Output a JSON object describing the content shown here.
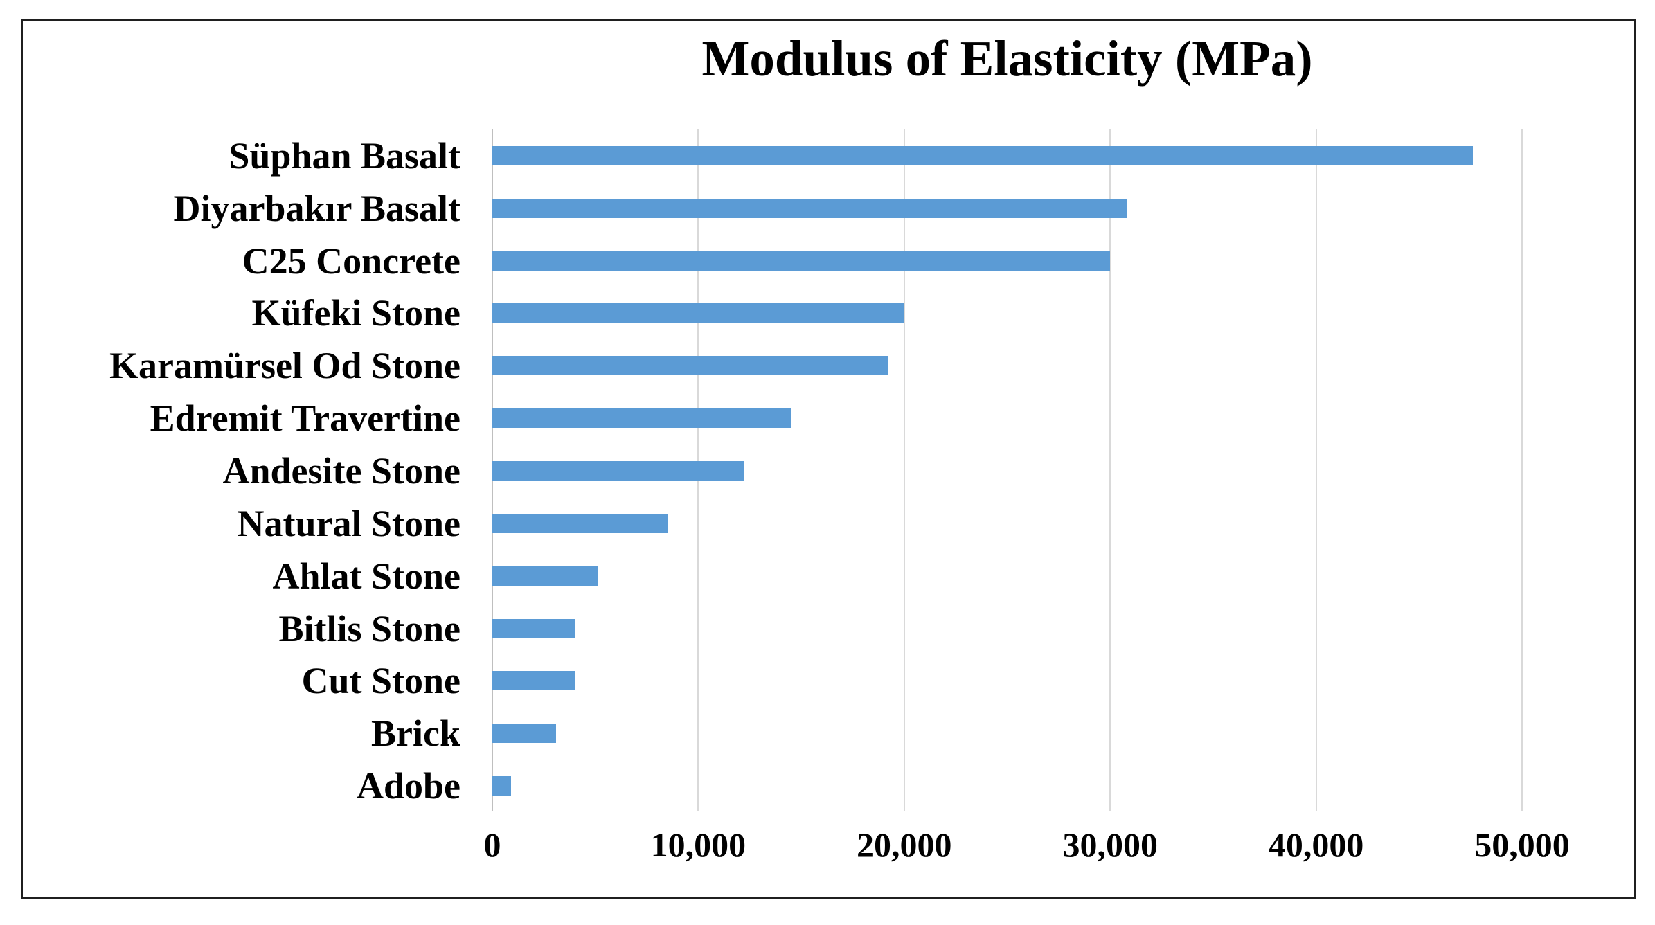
{
  "figure": {
    "border_color": "#1f1f1f",
    "background_color": "#ffffff"
  },
  "chart_data": {
    "type": "bar",
    "orientation": "horizontal",
    "title": "Modulus of Elasticity (MPa)",
    "categories": [
      "Süphan Basalt",
      "Diyarbakır Basalt",
      "C25 Concrete",
      "Küfeki Stone",
      "Karamürsel Od Stone",
      "Edremit Travertine",
      "Andesite Stone",
      "Natural Stone",
      "Ahlat Stone",
      "Bitlis Stone",
      "Cut Stone",
      "Brick",
      "Adobe"
    ],
    "values": [
      47600,
      30800,
      30000,
      20000,
      19200,
      14500,
      12200,
      8500,
      5100,
      4000,
      4000,
      3100,
      900
    ],
    "xlabel": "",
    "ylabel": "",
    "xlim": [
      0,
      50000
    ],
    "x_ticks": [
      0,
      10000,
      20000,
      30000,
      40000,
      50000
    ],
    "x_tick_labels": [
      "0",
      "10,000",
      "20,000",
      "30,000",
      "40,000",
      "50,000"
    ],
    "bar_color": "#5B9BD5",
    "gridline_color": "#D9D9D9",
    "axis_line_color": "#BFBFBF",
    "gridlines": true,
    "legend": "none"
  }
}
